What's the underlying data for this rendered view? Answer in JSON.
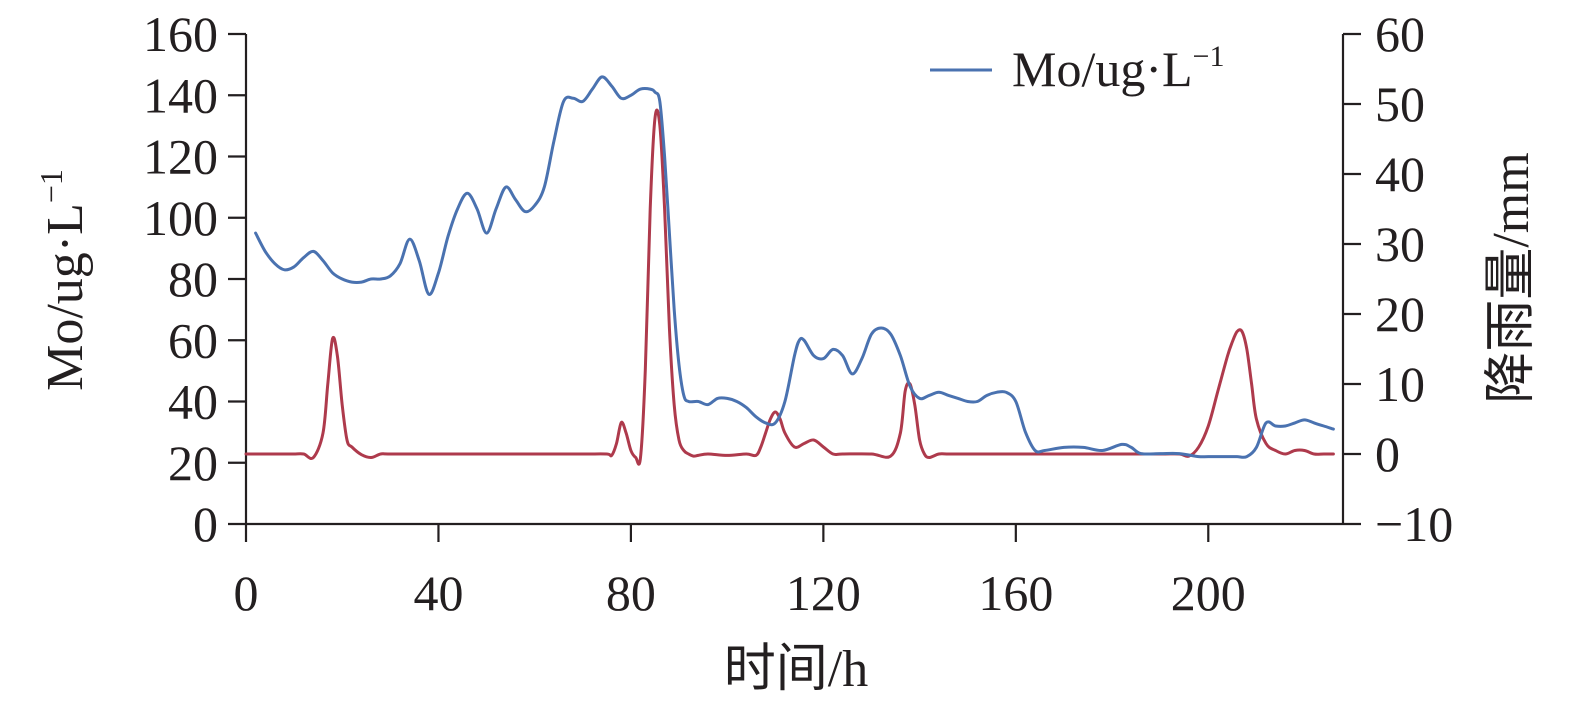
{
  "chart_data": {
    "type": "line",
    "title": "",
    "xlabel": "时间/h",
    "ylabel_left": "Mo/ug·L",
    "ylabel_left_sup": "−1",
    "ylabel_right": "降雨量/mm",
    "xlim": [
      0,
      228
    ],
    "ylim_left": [
      0,
      160
    ],
    "ylim_right": [
      -10,
      60
    ],
    "x_ticks": [
      0,
      40,
      80,
      120,
      160,
      200
    ],
    "x_tick_labels": [
      "0",
      "40",
      "80",
      "120",
      "160",
      "200"
    ],
    "y_left_ticks": [
      0,
      20,
      40,
      60,
      80,
      100,
      120,
      140,
      160
    ],
    "y_left_tick_labels": [
      "0",
      "20",
      "40",
      "60",
      "80",
      "100",
      "120",
      "140",
      "160"
    ],
    "y_right_ticks": [
      -10,
      0,
      10,
      20,
      30,
      40,
      50,
      60
    ],
    "y_right_tick_labels": [
      "−10",
      "0",
      "10",
      "20",
      "30",
      "40",
      "50",
      "60"
    ],
    "grid": false,
    "legend_position": "top-right",
    "series": [
      {
        "name": "Mo/ug·L",
        "name_sup": "−1",
        "axis": "left",
        "color": "#4a72b0",
        "x": [
          2,
          4,
          6,
          8,
          10,
          12,
          14,
          16,
          18,
          20,
          22,
          24,
          26,
          28,
          30,
          32,
          34,
          36,
          38,
          40,
          42,
          44,
          46,
          48,
          50,
          52,
          54,
          56,
          58,
          60,
          62,
          64,
          66,
          68,
          70,
          72,
          74,
          76,
          78,
          80,
          82,
          84,
          85,
          86,
          87,
          88,
          89,
          90,
          91,
          92,
          94,
          96,
          98,
          100,
          102,
          104,
          106,
          108,
          110,
          112,
          114,
          115,
          116,
          118,
          120,
          122,
          124,
          126,
          128,
          130,
          132,
          134,
          136,
          138,
          140,
          142,
          144,
          146,
          148,
          150,
          152,
          154,
          156,
          158,
          160,
          162,
          164,
          166,
          170,
          174,
          178,
          182,
          184,
          186,
          190,
          194,
          198,
          200,
          204,
          206,
          208,
          210,
          212,
          214,
          216,
          218,
          220,
          222,
          224,
          226
        ],
        "y": [
          95,
          89,
          85,
          83,
          84,
          87,
          89,
          86,
          82,
          80,
          79,
          79,
          80,
          80,
          81,
          85,
          93,
          86,
          75,
          82,
          94,
          103,
          108,
          103,
          95,
          103,
          110,
          106,
          102,
          104,
          110,
          125,
          138,
          139,
          138,
          142,
          146,
          143,
          139,
          140,
          142,
          142,
          141,
          138,
          120,
          95,
          70,
          52,
          42,
          40,
          40,
          39,
          41,
          41,
          40,
          38,
          35,
          33,
          33,
          40,
          55,
          60,
          60,
          55,
          54,
          57,
          55,
          49,
          54,
          62,
          64,
          62,
          55,
          45,
          41,
          42,
          43,
          42,
          41,
          40,
          40,
          42,
          43,
          43,
          40,
          30,
          24,
          24,
          25,
          25,
          24,
          26,
          25,
          23,
          23,
          23,
          22,
          22,
          22,
          22,
          22,
          25,
          33,
          32,
          32,
          33,
          34,
          33,
          32,
          31
        ]
      },
      {
        "name": "降雨量/mm",
        "axis": "right",
        "color": "#ae3a4c",
        "x": [
          0,
          2,
          4,
          6,
          8,
          10,
          12,
          14,
          16,
          17,
          18,
          19,
          20,
          21,
          22,
          24,
          26,
          28,
          30,
          40,
          50,
          60,
          70,
          75,
          76,
          77,
          78,
          79,
          80,
          81,
          82,
          83,
          84,
          85,
          86,
          87,
          88,
          89,
          90,
          91,
          92,
          93,
          94,
          96,
          100,
          104,
          106,
          107,
          108,
          109,
          110,
          111,
          112,
          114,
          116,
          118,
          120,
          122,
          124,
          130,
          134,
          136,
          137,
          138,
          139,
          140,
          141,
          142,
          144,
          146,
          150,
          160,
          170,
          180,
          190,
          194,
          196,
          198,
          200,
          202,
          204,
          205,
          206,
          207,
          208,
          209,
          210,
          212,
          214,
          216,
          218,
          220,
          222,
          224,
          226
        ],
        "y": [
          0,
          0,
          0,
          0,
          0,
          0,
          0,
          -0.5,
          3,
          10,
          16.5,
          14,
          7,
          2,
          1,
          -0.1,
          -0.5,
          0,
          0,
          0,
          0,
          0,
          0,
          0,
          -0.2,
          1.5,
          4.5,
          3,
          0.5,
          -0.5,
          -0.5,
          12,
          35,
          48,
          47,
          35,
          18,
          7,
          2,
          0.5,
          0,
          -0.3,
          -0.2,
          0,
          -0.2,
          0,
          -0.2,
          1,
          3,
          5,
          6,
          5,
          3,
          1,
          1.5,
          2,
          1,
          0,
          0,
          0,
          -0.3,
          3,
          9,
          10,
          7,
          2,
          0,
          -0.5,
          0,
          0,
          0,
          0,
          0,
          0,
          0,
          0,
          -0.3,
          1,
          4,
          9,
          14,
          16,
          17.5,
          17.5,
          15,
          10,
          5,
          1.5,
          0.5,
          0,
          0.5,
          0.5,
          0,
          0,
          0
        ]
      }
    ]
  }
}
